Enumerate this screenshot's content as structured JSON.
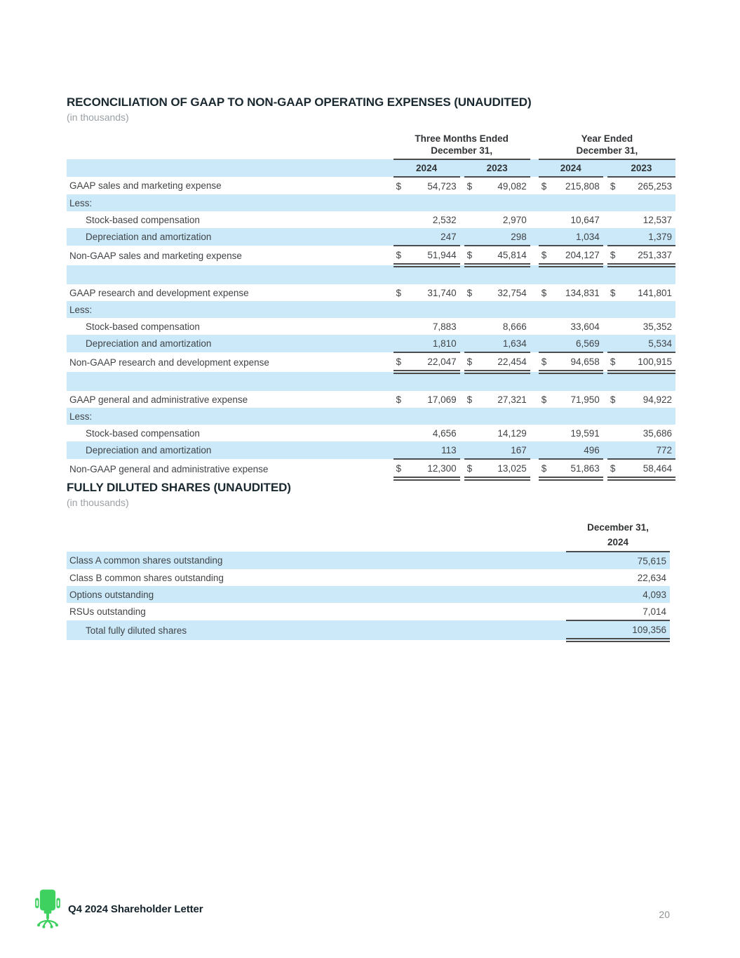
{
  "section1": {
    "title": "RECONCILIATION OF GAAP TO NON-GAAP OPERATING EXPENSES (UNAUDITED)",
    "subtitle": "(in thousands)",
    "column_groups": [
      {
        "line1": "Three Months Ended",
        "line2": "December 31,"
      },
      {
        "line1": "Year Ended",
        "line2": "December 31,"
      }
    ],
    "year_headers": [
      "2024",
      "2023",
      "2024",
      "2023"
    ],
    "rows": [
      {
        "label": "GAAP sales and marketing expense",
        "currency": "$",
        "values": [
          "54,723",
          "49,082",
          "215,808",
          "265,253"
        ],
        "shaded": false
      },
      {
        "label": "Less:",
        "shaded": true
      },
      {
        "label": "Stock-based compensation",
        "indent": true,
        "values": [
          "2,532",
          "2,970",
          "10,647",
          "12,537"
        ],
        "shaded": false
      },
      {
        "label": "Depreciation and amortization",
        "indent": true,
        "values": [
          "247",
          "298",
          "1,034",
          "1,379"
        ],
        "shaded": true,
        "border": "single"
      },
      {
        "label": "Non-GAAP sales and marketing expense",
        "currency": "$",
        "values": [
          "51,944",
          "45,814",
          "204,127",
          "251,337"
        ],
        "shaded": false,
        "border": "double"
      },
      {
        "spacer": true,
        "shaded": true
      },
      {
        "label": "GAAP research and development expense",
        "currency": "$",
        "values": [
          "31,740",
          "32,754",
          "134,831",
          "141,801"
        ],
        "shaded": false
      },
      {
        "label": "Less:",
        "shaded": true
      },
      {
        "label": "Stock-based compensation",
        "indent": true,
        "values": [
          "7,883",
          "8,666",
          "33,604",
          "35,352"
        ],
        "shaded": false
      },
      {
        "label": "Depreciation and amortization",
        "indent": true,
        "values": [
          "1,810",
          "1,634",
          "6,569",
          "5,534"
        ],
        "shaded": true,
        "border": "single"
      },
      {
        "label": "Non-GAAP research and development expense",
        "currency": "$",
        "values": [
          "22,047",
          "22,454",
          "94,658",
          "100,915"
        ],
        "shaded": false,
        "border": "double"
      },
      {
        "spacer": true,
        "shaded": true
      },
      {
        "label": "GAAP general and administrative expense",
        "currency": "$",
        "values": [
          "17,069",
          "27,321",
          "71,950",
          "94,922"
        ],
        "shaded": false
      },
      {
        "label": "Less:",
        "shaded": true
      },
      {
        "label": "Stock-based compensation",
        "indent": true,
        "values": [
          "4,656",
          "14,129",
          "19,591",
          "35,686"
        ],
        "shaded": false
      },
      {
        "label": "Depreciation and amortization",
        "indent": true,
        "values": [
          "113",
          "167",
          "496",
          "772"
        ],
        "shaded": true,
        "border": "single"
      },
      {
        "label": "Non-GAAP general and administrative expense",
        "currency": "$",
        "values": [
          "12,300",
          "13,025",
          "51,863",
          "58,464"
        ],
        "shaded": false,
        "border": "double"
      }
    ]
  },
  "section2": {
    "title": "FULLY DILUTED SHARES (UNAUDITED)",
    "subtitle": "(in thousands)",
    "column_header": {
      "line1": "December 31,",
      "line2": "2024"
    },
    "rows": [
      {
        "label": "Class A common shares outstanding",
        "value": "75,615",
        "shaded": true
      },
      {
        "label": "Class B common shares outstanding",
        "value": "22,634",
        "shaded": false
      },
      {
        "label": "Options outstanding",
        "value": "4,093",
        "shaded": true
      },
      {
        "label": "RSUs outstanding",
        "value": "7,014",
        "shaded": false,
        "border": "single"
      },
      {
        "label": "Total fully diluted shares",
        "value": "109,356",
        "shaded": true,
        "indent": true,
        "border": "double"
      }
    ]
  },
  "footer": {
    "brand": "Q4 2024 Shareholder Letter",
    "page_number": "20",
    "logo": "office-chair-icon"
  },
  "colors": {
    "row_highlight": "#cbe9f9",
    "brand_green": "#3fd160",
    "heading": "#1a2930",
    "body_text": "#414447",
    "muted_text": "#9ba1a5",
    "rule": "#4a4c4e"
  }
}
